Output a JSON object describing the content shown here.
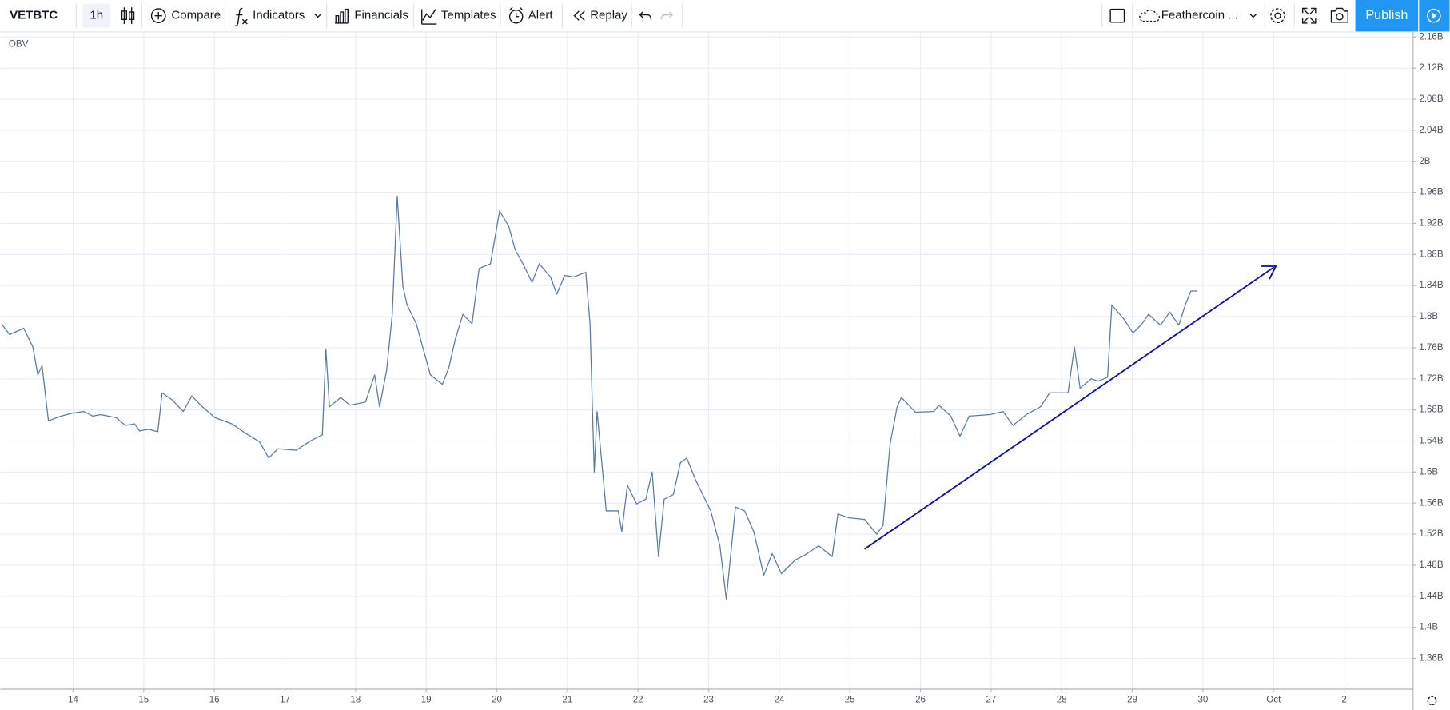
{
  "toolbar": {
    "symbol": "VETBTC",
    "interval": "1h",
    "buttons": [
      "Compare",
      "Indicators",
      "Financials",
      "Templates",
      "Alert",
      "Replay"
    ],
    "layout": "Feathercoin ...",
    "publish": "Publish"
  },
  "chart_data": {
    "type": "line",
    "title": "OBV",
    "x": [
      13.0,
      13.1,
      13.3,
      13.43,
      13.5,
      13.56,
      13.65,
      13.83,
      14.0,
      14.15,
      14.28,
      14.39,
      14.61,
      14.74,
      14.87,
      14.94,
      15.07,
      15.2,
      15.26,
      15.4,
      15.56,
      15.68,
      15.83,
      16.01,
      16.25,
      16.44,
      16.64,
      16.77,
      16.9,
      17.16,
      17.36,
      17.53,
      17.58,
      17.63,
      17.79,
      17.92,
      18.14,
      18.27,
      18.34,
      18.44,
      18.52,
      18.59,
      18.67,
      18.73,
      18.86,
      18.95,
      19.06,
      19.23,
      19.32,
      19.41,
      19.52,
      19.65,
      19.75,
      19.91,
      20.04,
      20.17,
      20.26,
      20.37,
      20.5,
      20.6,
      20.76,
      20.85,
      20.96,
      21.09,
      21.26,
      21.32,
      21.38,
      21.42,
      21.55,
      21.72,
      21.77,
      21.85,
      21.98,
      22.11,
      22.2,
      22.29,
      22.37,
      22.5,
      22.6,
      22.69,
      22.82,
      23.03,
      23.16,
      23.25,
      23.38,
      23.51,
      23.64,
      23.78,
      23.9,
      24.03,
      24.23,
      24.36,
      24.56,
      24.75,
      24.83,
      24.99,
      25.21,
      25.38,
      25.47,
      25.57,
      25.67,
      25.73,
      25.93,
      26.19,
      26.26,
      26.43,
      26.56,
      26.69,
      26.98,
      27.17,
      27.31,
      27.5,
      27.7,
      27.83,
      28.09,
      28.18,
      28.26,
      28.42,
      28.52,
      28.65,
      28.71,
      28.88,
      29.01,
      29.14,
      29.23,
      29.4,
      29.53,
      29.66,
      29.75,
      29.83,
      29.92
    ],
    "series": [
      {
        "color": "#5a7ca3",
        "values": [
          1.789,
          1.777,
          1.785,
          1.761,
          1.725,
          1.737,
          1.666,
          1.672,
          1.676,
          1.678,
          1.672,
          1.674,
          1.67,
          1.66,
          1.662,
          1.653,
          1.655,
          1.652,
          1.702,
          1.693,
          1.678,
          1.698,
          1.684,
          1.67,
          1.662,
          1.65,
          1.639,
          1.618,
          1.63,
          1.628,
          1.64,
          1.648,
          1.758,
          1.684,
          1.696,
          1.686,
          1.69,
          1.725,
          1.684,
          1.731,
          1.803,
          1.955,
          1.839,
          1.815,
          1.791,
          1.761,
          1.725,
          1.713,
          1.734,
          1.77,
          1.803,
          1.791,
          1.862,
          1.868,
          1.936,
          1.916,
          1.886,
          1.868,
          1.844,
          1.868,
          1.851,
          1.829,
          1.853,
          1.851,
          1.857,
          1.791,
          1.6,
          1.678,
          1.55,
          1.55,
          1.523,
          1.583,
          1.559,
          1.565,
          1.6,
          1.491,
          1.565,
          1.571,
          1.612,
          1.618,
          1.589,
          1.55,
          1.505,
          1.436,
          1.555,
          1.55,
          1.523,
          1.467,
          1.495,
          1.469,
          1.487,
          1.493,
          1.505,
          1.491,
          1.546,
          1.541,
          1.539,
          1.52,
          1.531,
          1.636,
          1.684,
          1.696,
          1.677,
          1.678,
          1.686,
          1.672,
          1.646,
          1.672,
          1.674,
          1.678,
          1.66,
          1.674,
          1.684,
          1.702,
          1.702,
          1.761,
          1.708,
          1.72,
          1.717,
          1.722,
          1.815,
          1.797,
          1.779,
          1.791,
          1.803,
          1.789,
          1.806,
          1.789,
          1.815,
          1.833,
          1.833
        ]
      }
    ],
    "xlim": [
      12.97,
      32.97
    ],
    "xticks": [
      14,
      15,
      16,
      17,
      18,
      19,
      20,
      21,
      22,
      23,
      24,
      25,
      26,
      27,
      28,
      29,
      30,
      {
        "value": 31,
        "label": "Oct"
      },
      {
        "value": 32,
        "label": "2"
      }
    ],
    "ylim": [
      1.321,
      2.166
    ],
    "yticks": [
      {
        "value": 1.36,
        "label": "1.36B"
      },
      {
        "value": 1.4,
        "label": "1.4B"
      },
      {
        "value": 1.44,
        "label": "1.44B"
      },
      {
        "value": 1.48,
        "label": "1.48B"
      },
      {
        "value": 1.52,
        "label": "1.52B"
      },
      {
        "value": 1.56,
        "label": "1.56B"
      },
      {
        "value": 1.6,
        "label": "1.6B"
      },
      {
        "value": 1.64,
        "label": "1.64B"
      },
      {
        "value": 1.68,
        "label": "1.68B"
      },
      {
        "value": 1.72,
        "label": "1.72B"
      },
      {
        "value": 1.76,
        "label": "1.76B"
      },
      {
        "value": 1.8,
        "label": "1.8B"
      },
      {
        "value": 1.84,
        "label": "1.84B"
      },
      {
        "value": 1.88,
        "label": "1.88B"
      },
      {
        "value": 1.92,
        "label": "1.92B"
      },
      {
        "value": 1.96,
        "label": "1.96B"
      },
      {
        "value": 2,
        "label": "2B"
      },
      {
        "value": 2.04,
        "label": "2.04B"
      },
      {
        "value": 2.08,
        "label": "2.08B"
      },
      {
        "value": 2.12,
        "label": "2.12B"
      },
      {
        "value": 2.16,
        "label": "2.16B"
      }
    ],
    "grid": true,
    "grid_color": "#e8eef4"
  }
}
